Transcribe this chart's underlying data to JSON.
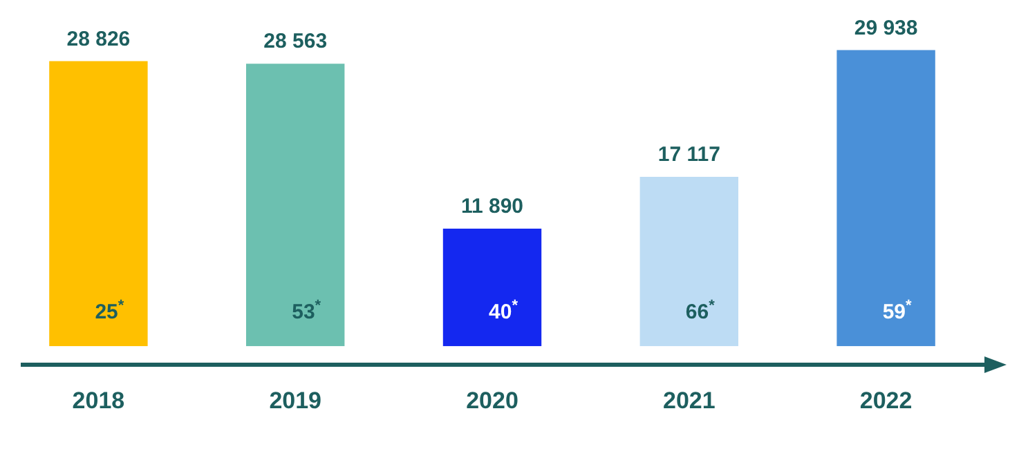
{
  "chart_data": {
    "type": "bar",
    "categories": [
      "2018",
      "2019",
      "2020",
      "2021",
      "2022"
    ],
    "values": [
      28826,
      28563,
      11890,
      17117,
      29938
    ],
    "colors": [
      "#ffc000",
      "#6cc0b0",
      "#1428f0",
      "#bddcf4",
      "#4a90d8"
    ],
    "data_labels": true,
    "value_labels": [
      "28 826",
      "28 563",
      "11 890",
      "17 117",
      "29 938"
    ],
    "annotations": [
      "25$^{*}$",
      "53$^{*}$",
      "40$^{*}$",
      "66$^{*}$",
      "59$^{*}$"
    ],
    "grid": false,
    "legend": false
  }
}
